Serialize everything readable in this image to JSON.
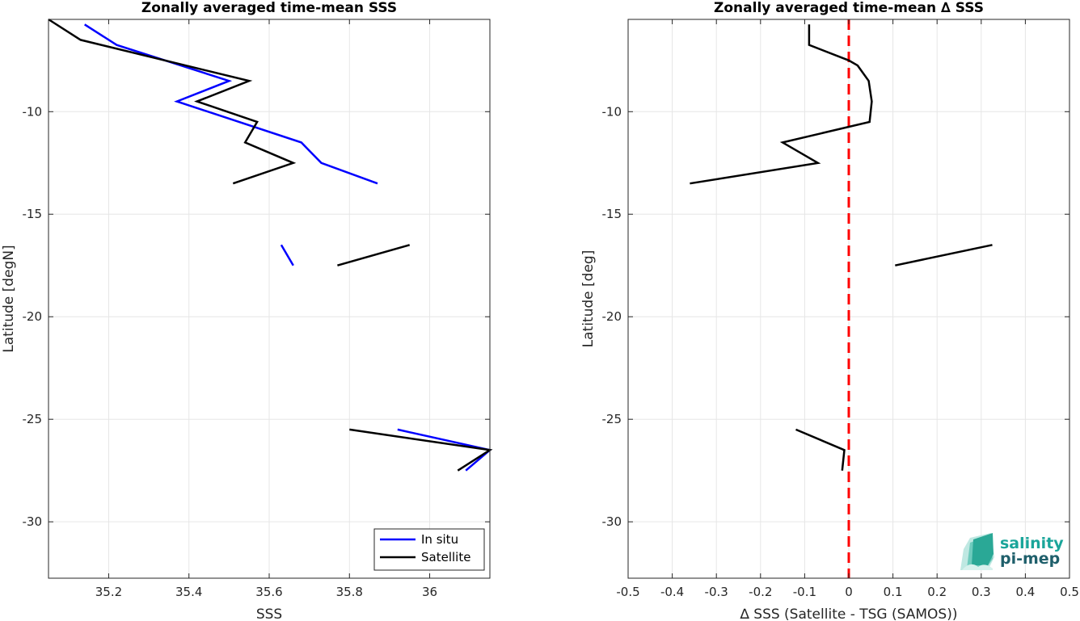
{
  "chart_data": [
    {
      "type": "line",
      "title": "Zonally averaged time-mean SSS",
      "xlabel": "SSS",
      "ylabel": "Latitude [degN]",
      "xlim": [
        35.05,
        36.15
      ],
      "ylim": [
        -32.75,
        -5.5
      ],
      "xticks": [
        35.2,
        35.4,
        35.6,
        35.8,
        36
      ],
      "xtick_labels": [
        "35.2",
        "35.4",
        "35.6",
        "35.8",
        "36"
      ],
      "yticks": [
        -30,
        -25,
        -20,
        -15,
        -10
      ],
      "ytick_labels": [
        "-30",
        "-25",
        "-20",
        "-15",
        "-10"
      ],
      "grid": true,
      "legend_position": "bottom-right",
      "series": [
        {
          "name": "In situ",
          "color": "#0000ff",
          "segments": [
            [
              [
                35.14,
                -5.75
              ],
              [
                35.22,
                -6.75
              ],
              [
                35.5,
                -8.5
              ],
              [
                35.37,
                -9.5
              ],
              [
                35.68,
                -11.5
              ],
              [
                35.73,
                -12.5
              ],
              [
                35.87,
                -13.5
              ]
            ],
            [
              [
                35.63,
                -16.5
              ],
              [
                35.66,
                -17.5
              ]
            ],
            [
              [
                35.92,
                -25.5
              ],
              [
                36.15,
                -26.5
              ],
              [
                36.09,
                -27.5
              ]
            ]
          ]
        },
        {
          "name": "Satellite",
          "color": "#000000",
          "segments": [
            [
              [
                35.05,
                -5.5
              ],
              [
                35.13,
                -6.5
              ],
              [
                35.55,
                -8.5
              ],
              [
                35.42,
                -9.5
              ],
              [
                35.57,
                -10.5
              ],
              [
                35.54,
                -11.5
              ],
              [
                35.66,
                -12.5
              ],
              [
                35.51,
                -13.5
              ]
            ],
            [
              [
                35.95,
                -16.5
              ],
              [
                35.77,
                -17.5
              ]
            ],
            [
              [
                35.8,
                -25.5
              ],
              [
                36.15,
                -26.5
              ],
              [
                36.07,
                -27.5
              ]
            ]
          ]
        }
      ]
    },
    {
      "type": "line",
      "title": "Zonally averaged time-mean ∆ SSS",
      "xlabel": "∆ SSS (Satellite - TSG (SAMOS))",
      "ylabel": "Latitude [deg]",
      "xlim": [
        -0.5,
        0.5
      ],
      "ylim": [
        -32.75,
        -5.5
      ],
      "xticks": [
        -0.5,
        -0.4,
        -0.3,
        -0.2,
        -0.1,
        0,
        0.1,
        0.2,
        0.3,
        0.4,
        0.5
      ],
      "xtick_labels": [
        "-0.5",
        "-0.4",
        "-0.3",
        "-0.2",
        "-0.1",
        "0",
        "0.1",
        "0.2",
        "0.3",
        "0.4",
        "0.5"
      ],
      "yticks": [
        -30,
        -25,
        -20,
        -15,
        -10
      ],
      "ytick_labels": [
        "-30",
        "-25",
        "-20",
        "-15",
        "-10"
      ],
      "grid": true,
      "reference_line": {
        "x": 0,
        "color": "#ff0000",
        "style": "dashed"
      },
      "series": [
        {
          "color": "#000000",
          "segments": [
            [
              [
                -0.09,
                -5.75
              ],
              [
                -0.09,
                -6.75
              ],
              [
                0.0,
                -7.5
              ],
              [
                0.02,
                -7.75
              ],
              [
                0.045,
                -8.5
              ],
              [
                0.052,
                -9.5
              ],
              [
                0.047,
                -10.5
              ],
              [
                -0.15,
                -11.5
              ],
              [
                -0.07,
                -12.5
              ],
              [
                -0.36,
                -13.5
              ]
            ],
            [
              [
                0.325,
                -16.5
              ],
              [
                0.105,
                -17.5
              ]
            ],
            [
              [
                -0.12,
                -25.5
              ],
              [
                -0.01,
                -26.5
              ],
              [
                -0.015,
                -27.5
              ]
            ]
          ]
        }
      ]
    }
  ],
  "legend": {
    "items": [
      "In situ",
      "Satellite"
    ]
  },
  "logo": {
    "line1": "salinity",
    "line2": "pi-mep"
  }
}
